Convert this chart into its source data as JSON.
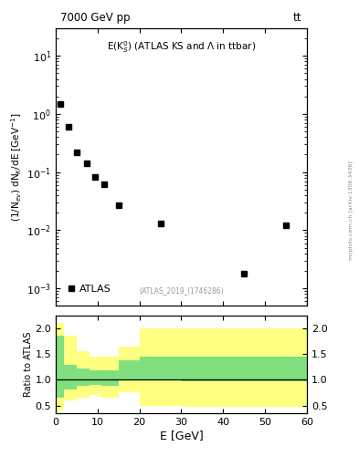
{
  "title_top": "7000 GeV pp",
  "title_top_right": "tt",
  "annotation": "E(K$_S^0$) (ATLAS KS and Λ in ttbar)",
  "watermark": "(ATLAS_2019_I1746286)",
  "right_label": "mcplots.cern.ch [arXiv:1306.3436]",
  "ylabel_main": "(1/N$_{ev}$) dN$_K$/dE [GeV$^{-1}$]",
  "ylabel_ratio": "Ratio to ATLAS",
  "xlabel": "E [GeV]",
  "data_x": [
    1.0,
    3.0,
    5.0,
    7.5,
    9.5,
    11.5,
    15.0,
    25.0,
    45.0,
    55.0
  ],
  "data_y": [
    1.5,
    0.6,
    0.22,
    0.14,
    0.082,
    0.062,
    0.027,
    0.013,
    0.0018,
    0.012
  ],
  "data_label": "ATLAS",
  "xlim": [
    0,
    60
  ],
  "ylim_main": [
    0.0005,
    30
  ],
  "ylim_ratio": [
    0.35,
    2.25
  ],
  "ratio_yticks": [
    0.5,
    1.0,
    1.5,
    2.0
  ],
  "ratio_bins": [
    0,
    2,
    5,
    8,
    11,
    15,
    20,
    25,
    30,
    60
  ],
  "green_lo": [
    0.65,
    0.82,
    0.88,
    0.9,
    0.88,
    0.98,
    1.0,
    1.0,
    0.97
  ],
  "green_hi": [
    1.85,
    1.28,
    1.22,
    1.18,
    1.18,
    1.38,
    1.45,
    1.45,
    1.45
  ],
  "yellow_lo": [
    0.4,
    0.6,
    0.65,
    0.7,
    0.65,
    0.75,
    0.5,
    0.5,
    0.48
  ],
  "yellow_hi": [
    2.1,
    1.85,
    1.55,
    1.45,
    1.45,
    1.65,
    2.0,
    2.0,
    2.0
  ],
  "background_color": "#ffffff",
  "marker_color": "#000000",
  "green_color": "#80e080",
  "yellow_color": "#ffff80"
}
